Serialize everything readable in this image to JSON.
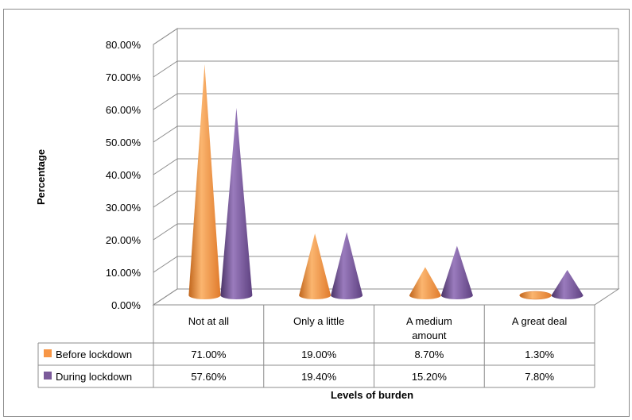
{
  "chart_data": {
    "type": "bar",
    "style": "3d-cone",
    "xlabel": "Levels of burden",
    "ylabel": "Percentage",
    "ylim": [
      0,
      80
    ],
    "yticks": [
      "0.00%",
      "10.00%",
      "20.00%",
      "30.00%",
      "40.00%",
      "50.00%",
      "60.00%",
      "70.00%",
      "80.00%"
    ],
    "grid": true,
    "legend": "data-table",
    "categories": [
      [
        "Not at all"
      ],
      [
        "Only a little"
      ],
      [
        "A medium",
        "amount"
      ],
      [
        "A great deal"
      ]
    ],
    "series": [
      {
        "name": "Before lockdown",
        "color": "#f79646",
        "values": [
          71.0,
          19.0,
          8.7,
          1.3
        ],
        "labels": [
          "71.00%",
          "19.00%",
          "8.70%",
          "1.30%"
        ]
      },
      {
        "name": "During lockdown",
        "color": "#7b5a9a",
        "values": [
          57.6,
          19.4,
          15.2,
          7.8
        ],
        "labels": [
          "57.60%",
          "19.40%",
          "15.20%",
          "7.80%"
        ]
      }
    ]
  }
}
